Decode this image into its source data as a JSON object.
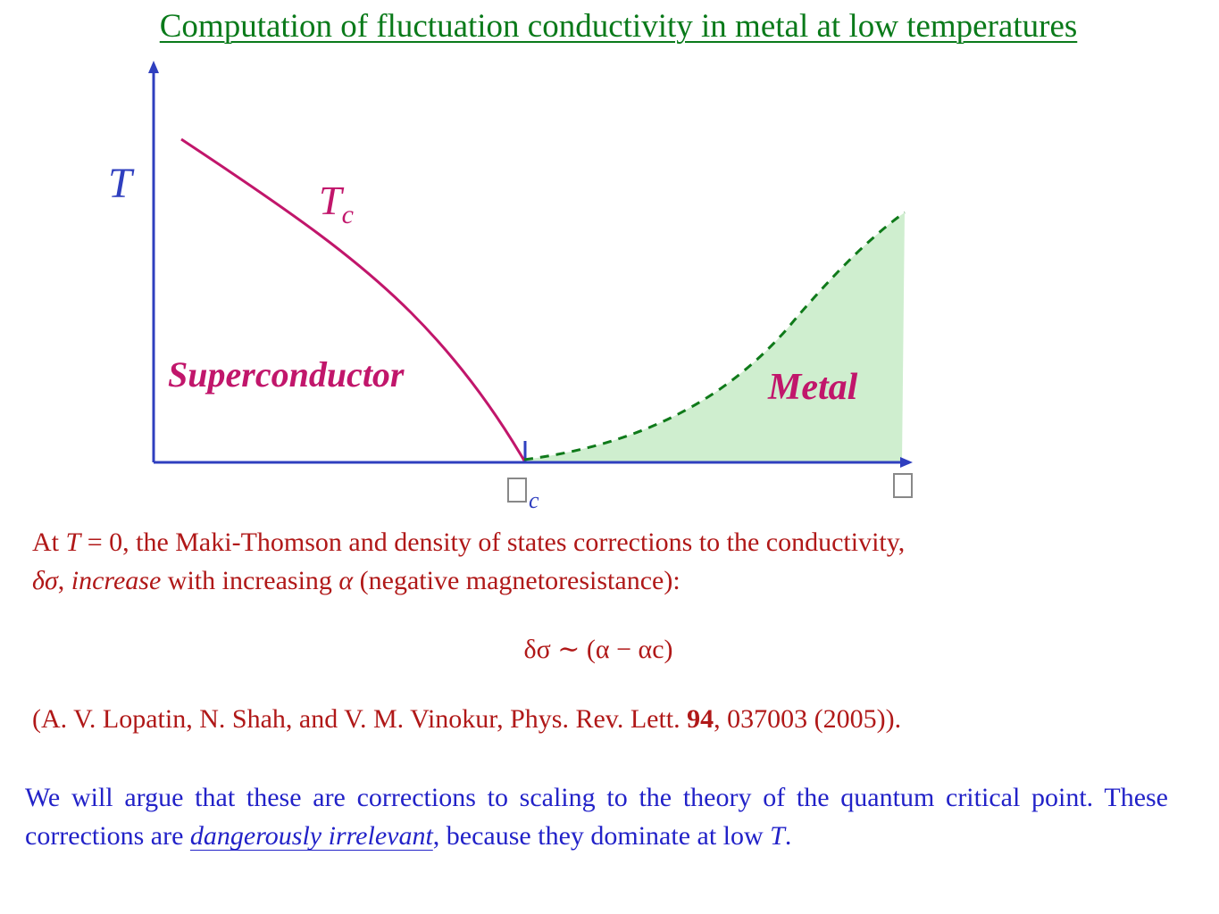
{
  "title": "Computation of fluctuation conductivity in metal at low temperatures",
  "diagram": {
    "y_axis_label": "T",
    "curve_label": "T",
    "curve_label_sub": "c",
    "region_left_label": "Superconductor",
    "region_right_label": "Metal",
    "x_critical_sub": "c",
    "colors": {
      "axes": "#2f3fbf",
      "tc_curve": "#c1166b",
      "metal_fill": "#cfeecf",
      "crossover": "#0f7a1a",
      "title": "#0a7a1a"
    }
  },
  "paragraph1": {
    "part1": "At ",
    "var_T": "T",
    "part2": " = 0, the Maki-Thomson and density of states corrections to the conductivity,",
    "delta_sigma": "δσ",
    "part3": ", ",
    "increase": "increase",
    "part4": " with increasing ",
    "alpha": "α",
    "part5": " (negative magnetoresistance):"
  },
  "equation": "δσ ∼ (α − αc)",
  "reference": {
    "before": "(A. V. Lopatin, N. Shah, and V. M. Vinokur, Phys. Rev. Lett. ",
    "volume": "94",
    "after": ", 037003 (2005))."
  },
  "paragraph2": {
    "part1": "We will argue that these are corrections to scaling to the theory of the quantum critical point. These corrections are ",
    "emphasis": "dangerously irrelevant",
    "part2": ", because they dominate at low ",
    "var_T": "T",
    "part3": "."
  }
}
